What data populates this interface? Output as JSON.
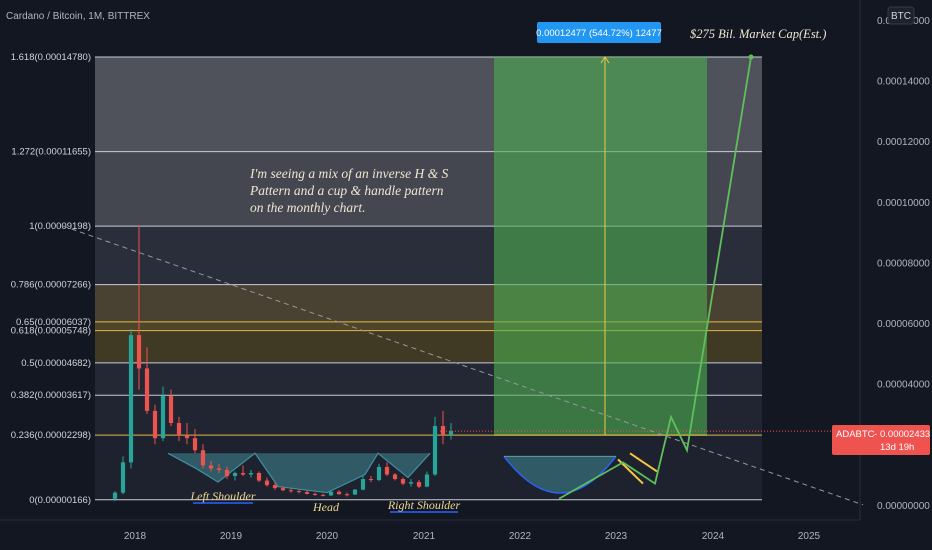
{
  "header": {
    "symbol_title": "Cardano / Bitcoin, 1M, BITTREX",
    "currency_badge": "BTC"
  },
  "colors": {
    "background": "#131722",
    "candle_up": "#26a69a",
    "candle_down": "#ef5350",
    "target_box": "#4caf50",
    "projection_line": "#5fbf5a",
    "measure_line": "#f5c542",
    "neckline": "#5a9fb0"
  },
  "chart_data": {
    "type": "candlestick",
    "x_axis": {
      "tick_labels": [
        "2018",
        "2019",
        "2020",
        "2021",
        "2022",
        "2023",
        "2024",
        "2025"
      ],
      "range": [
        "2017-04",
        "2025-08"
      ]
    },
    "y_axis": {
      "tick_labels": [
        "0.00016000",
        "0.00014000",
        "0.00012000",
        "0.00010000",
        "0.00008000",
        "0.00006000",
        "0.00004000",
        "0.00002000",
        "0.00000000"
      ],
      "range": [
        0,
        0.000165
      ],
      "position": "right"
    },
    "candles": [
      {
        "t": "2017-10",
        "o": 2e-06,
        "h": 4.5e-06,
        "l": 1.2e-06,
        "c": 4e-06
      },
      {
        "t": "2017-11",
        "o": 4e-06,
        "h": 1.6e-05,
        "l": 3.5e-06,
        "c": 1.4e-05
      },
      {
        "t": "2017-12",
        "o": 1.4e-05,
        "h": 5.8e-05,
        "l": 1.2e-05,
        "c": 5.6e-05
      },
      {
        "t": "2018-01",
        "o": 5.6e-05,
        "h": 9.2e-05,
        "l": 3.8e-05,
        "c": 4.5e-05
      },
      {
        "t": "2018-02",
        "o": 4.5e-05,
        "h": 5.2e-05,
        "l": 3e-05,
        "c": 3.1e-05
      },
      {
        "t": "2018-03",
        "o": 3.1e-05,
        "h": 3.3e-05,
        "l": 2e-05,
        "c": 2.2e-05
      },
      {
        "t": "2018-04",
        "o": 2.2e-05,
        "h": 3.9e-05,
        "l": 2.1e-05,
        "c": 3.6e-05
      },
      {
        "t": "2018-05",
        "o": 3.6e-05,
        "h": 3.8e-05,
        "l": 2.6e-05,
        "c": 2.7e-05
      },
      {
        "t": "2018-06",
        "o": 2.7e-05,
        "h": 2.9e-05,
        "l": 2.1e-05,
        "c": 2.3e-05
      },
      {
        "t": "2018-07",
        "o": 2.3e-05,
        "h": 2.7e-05,
        "l": 2e-05,
        "c": 2.2e-05
      },
      {
        "t": "2018-08",
        "o": 2.2e-05,
        "h": 2.5e-05,
        "l": 1.7e-05,
        "c": 1.8e-05
      },
      {
        "t": "2018-09",
        "o": 1.8e-05,
        "h": 2e-05,
        "l": 1.2e-05,
        "c": 1.3e-05
      },
      {
        "t": "2018-10",
        "o": 1.3e-05,
        "h": 1.45e-05,
        "l": 1.1e-05,
        "c": 1.2e-05
      },
      {
        "t": "2018-11",
        "o": 1.2e-05,
        "h": 1.35e-05,
        "l": 1.05e-05,
        "c": 1.15e-05
      },
      {
        "t": "2018-12",
        "o": 1.15e-05,
        "h": 1.25e-05,
        "l": 8.5e-06,
        "c": 9.5e-06
      },
      {
        "t": "2019-01",
        "o": 9.5e-06,
        "h": 1.1e-05,
        "l": 8e-06,
        "c": 1.05e-05
      },
      {
        "t": "2019-02",
        "o": 1.05e-05,
        "h": 1.3e-05,
        "l": 9.5e-06,
        "c": 1e-05
      },
      {
        "t": "2019-03",
        "o": 1e-05,
        "h": 1.15e-05,
        "l": 9e-06,
        "c": 1.05e-05
      },
      {
        "t": "2019-04",
        "o": 1.05e-05,
        "h": 1.1e-05,
        "l": 7.5e-06,
        "c": 8e-06
      },
      {
        "t": "2019-05",
        "o": 8e-06,
        "h": 9e-06,
        "l": 6e-06,
        "c": 6.5e-06
      },
      {
        "t": "2019-06",
        "o": 6.5e-06,
        "h": 7.5e-06,
        "l": 5e-06,
        "c": 5.5e-06
      },
      {
        "t": "2019-07",
        "o": 5.5e-06,
        "h": 6e-06,
        "l": 4.5e-06,
        "c": 4.8e-06
      },
      {
        "t": "2019-08",
        "o": 4.8e-06,
        "h": 5.5e-06,
        "l": 4e-06,
        "c": 4.5e-06
      },
      {
        "t": "2019-09",
        "o": 4.5e-06,
        "h": 5e-06,
        "l": 3.8e-06,
        "c": 4.2e-06
      },
      {
        "t": "2019-10",
        "o": 4.2e-06,
        "h": 4.8e-06,
        "l": 3.4e-06,
        "c": 3.6e-06
      },
      {
        "t": "2019-11",
        "o": 3.6e-06,
        "h": 4e-06,
        "l": 3e-06,
        "c": 3.3e-06
      },
      {
        "t": "2019-12",
        "o": 3.3e-06,
        "h": 3.6e-06,
        "l": 2.8e-06,
        "c": 3.1e-06
      },
      {
        "t": "2020-01",
        "o": 3.1e-06,
        "h": 4.5e-06,
        "l": 2.9e-06,
        "c": 4.3e-06
      },
      {
        "t": "2020-02",
        "o": 4.3e-06,
        "h": 4.8e-06,
        "l": 3.3e-06,
        "c": 3.5e-06
      },
      {
        "t": "2020-03",
        "o": 3.5e-06,
        "h": 4e-06,
        "l": 2.8e-06,
        "c": 3.4e-06
      },
      {
        "t": "2020-04",
        "o": 3.4e-06,
        "h": 5.2e-06,
        "l": 3.2e-06,
        "c": 5e-06
      },
      {
        "t": "2020-05",
        "o": 5e-06,
        "h": 9.5e-06,
        "l": 4.8e-06,
        "c": 8.5e-06
      },
      {
        "t": "2020-06",
        "o": 8.5e-06,
        "h": 9.5e-06,
        "l": 7.5e-06,
        "c": 8.2e-06
      },
      {
        "t": "2020-07",
        "o": 8.2e-06,
        "h": 1.35e-05,
        "l": 7.8e-06,
        "c": 1.25e-05
      },
      {
        "t": "2020-08",
        "o": 1.25e-05,
        "h": 1.4e-05,
        "l": 9.5e-06,
        "c": 1e-05
      },
      {
        "t": "2020-09",
        "o": 1e-05,
        "h": 1.05e-05,
        "l": 8e-06,
        "c": 8.5e-06
      },
      {
        "t": "2020-10",
        "o": 8.5e-06,
        "h": 9e-06,
        "l": 6.5e-06,
        "c": 7e-06
      },
      {
        "t": "2020-11",
        "o": 7e-06,
        "h": 8.5e-06,
        "l": 6e-06,
        "c": 7.5e-06
      },
      {
        "t": "2020-12",
        "o": 7.5e-06,
        "h": 8.2e-06,
        "l": 5.5e-06,
        "c": 6e-06
      },
      {
        "t": "2021-01",
        "o": 6e-06,
        "h": 1.1e-05,
        "l": 5.8e-06,
        "c": 1e-05
      },
      {
        "t": "2021-02",
        "o": 1e-05,
        "h": 2.9e-05,
        "l": 9.5e-06,
        "c": 2.6e-05
      },
      {
        "t": "2021-03",
        "o": 2.6e-05,
        "h": 3.1e-05,
        "l": 2e-05,
        "c": 2.3e-05
      },
      {
        "t": "2021-04",
        "o": 2.3e-05,
        "h": 2.7e-05,
        "l": 2.15e-05,
        "c": 2.43e-05
      }
    ],
    "fib_levels": [
      {
        "label": "0(0.00000166)",
        "value": 1.66e-06
      },
      {
        "label": "0.236(0.00002298)",
        "value": 2.298e-05
      },
      {
        "label": "0.382(0.00003617)",
        "value": 3.617e-05
      },
      {
        "label": "0.5(0.00004682)",
        "value": 4.682e-05
      },
      {
        "label": "0.618(0.00005748)",
        "value": 5.748e-05
      },
      {
        "label": "0.65(0.00006037)",
        "value": 6.037e-05
      },
      {
        "label": "0.786(0.00007266)",
        "value": 7.266e-05
      },
      {
        "label": "1(0.00009198)",
        "value": 9.198e-05
      },
      {
        "label": "1.272(0.00011655)",
        "value": 0.00011655
      },
      {
        "label": "1.618(0.00014780)",
        "value": 0.0001478
      }
    ],
    "fib_start": "2017-10",
    "target_box": {
      "x0": "2021-10",
      "x1": "2023-12",
      "y0": 2.298e-05,
      "y1": 0.0001478
    },
    "measure_label": "0.00012477 (544.72%) 12477",
    "measure_x": "2022-11",
    "projection_path": [
      {
        "t": "2022-06",
        "v": 2e-06
      },
      {
        "t": "2023-02",
        "v": 1.4e-05
      },
      {
        "t": "2023-06",
        "v": 7e-06
      },
      {
        "t": "2023-08",
        "v": 2.9e-05
      },
      {
        "t": "2023-10",
        "v": 1.8e-05
      },
      {
        "t": "2024-06",
        "v": 0.0001478
      }
    ],
    "trendline": [
      {
        "t": "2017-04",
        "v": 9.2e-05
      },
      {
        "t": "2025-08",
        "v": 0.0
      }
    ],
    "current_price": {
      "symbol": "ADABTC",
      "value": "0.00002433",
      "countdown": "13d 19h",
      "v": 2.433e-05
    },
    "annotations": [
      {
        "text": "I'm seeing a mix of an inverse H & S\nPattern and a cup & handle pattern\non the monthly chart."
      },
      {
        "text": "$275 Bil. Market Cap(Est.)"
      },
      {
        "text": "Left Shoulder"
      },
      {
        "text": "Head"
      },
      {
        "text": "Right Shoulder"
      }
    ]
  }
}
